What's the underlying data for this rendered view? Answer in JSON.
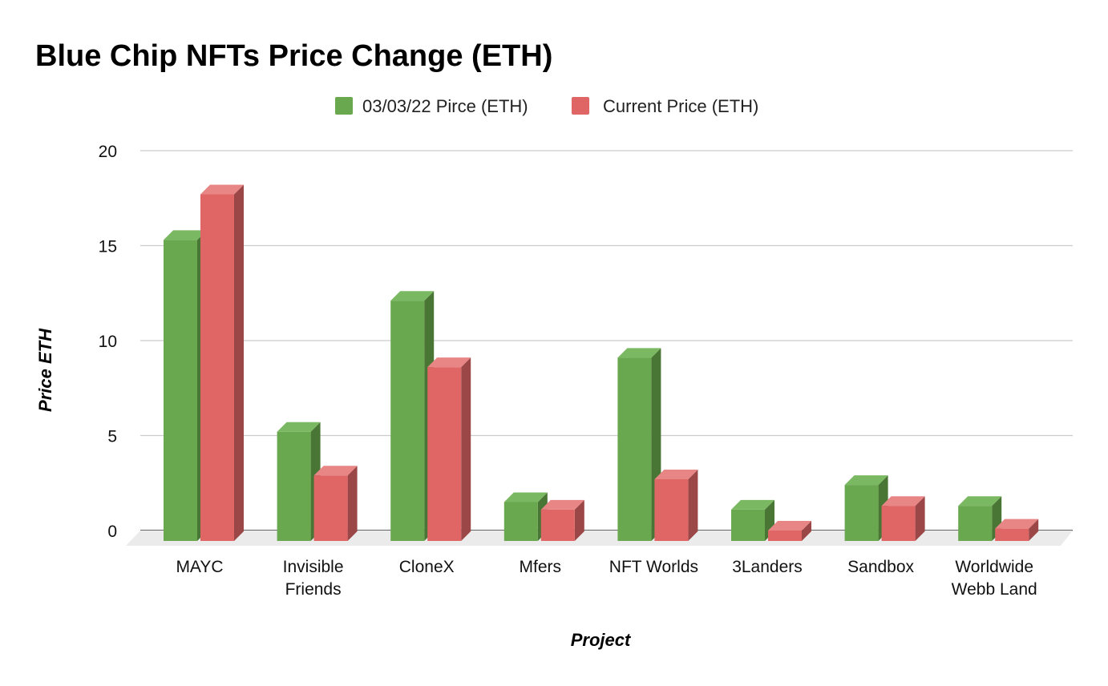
{
  "chart_data": {
    "type": "bar",
    "title": "Blue Chip NFTs Price Change (ETH)",
    "xlabel": "Project",
    "ylabel": "Price ETH",
    "ylim": [
      0,
      20
    ],
    "yticks": [
      "0",
      "5",
      "10",
      "15",
      "20"
    ],
    "grid": true,
    "legend_position": "top",
    "categories": [
      [
        "MAYC"
      ],
      [
        "Invisible",
        "Friends"
      ],
      [
        "CloneX"
      ],
      [
        "Mfers"
      ],
      [
        "NFT Worlds"
      ],
      [
        "3Landers"
      ],
      [
        "Sandbox"
      ],
      [
        "Worldwide",
        "Webb Land"
      ]
    ],
    "series": [
      {
        "name": "03/03/22 Pirce (ETH)",
        "color": "#6aa84f",
        "side_color": "#497535",
        "top_color": "#7bb862",
        "values": [
          15.3,
          5.2,
          12.1,
          1.5,
          9.1,
          1.1,
          2.4,
          1.3
        ]
      },
      {
        "name": "Current Price (ETH)",
        "color": "#e06666",
        "side_color": "#9c4747",
        "top_color": "#e88585",
        "values": [
          17.7,
          2.9,
          8.6,
          1.1,
          2.7,
          0.0,
          1.3,
          0.1
        ]
      }
    ]
  }
}
